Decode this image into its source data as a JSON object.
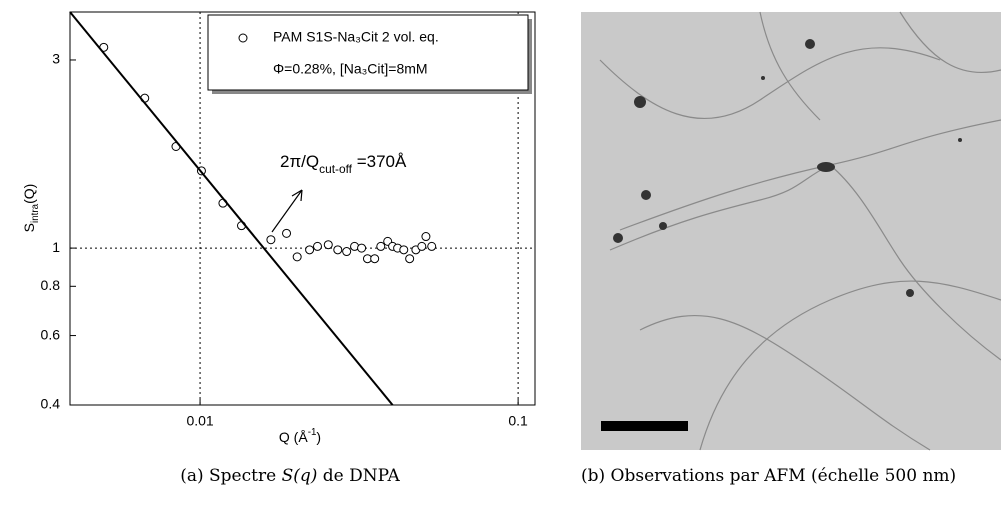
{
  "chart_data": {
    "type": "scatter",
    "xlabel": [
      {
        "text": "Q (Å"
      },
      {
        "text": "-1",
        "shift": "super"
      },
      {
        "text": ")"
      }
    ],
    "ylabel": [
      {
        "text": "S"
      },
      {
        "text": "intra",
        "shift": "sub"
      },
      {
        "text": "(Q)"
      }
    ],
    "log_x": true,
    "log_y": true,
    "xlim": [
      0.0039,
      0.113
    ],
    "ylim": [
      0.4,
      3.97
    ],
    "xticks": [
      0.01,
      0.1
    ],
    "yticks": [
      0.4,
      0.6,
      0.8,
      1,
      3
    ],
    "ref_lines": {
      "x": [
        0.01,
        0.1
      ],
      "y": [
        1
      ]
    },
    "series": [
      {
        "name": "PAM S1S-Na₃Cit 2 vol. eq.",
        "style": "markers",
        "color": "#000000",
        "x": [
          0.00498,
          0.0067,
          0.0084,
          0.0101,
          0.0118,
          0.0135,
          0.0167,
          0.0187,
          0.0202,
          0.0221,
          0.0234,
          0.0253,
          0.0271,
          0.0289,
          0.0306,
          0.0322,
          0.0336,
          0.0354,
          0.037,
          0.0389,
          0.0403,
          0.0418,
          0.0437,
          0.0456,
          0.0477,
          0.0498,
          0.0513,
          0.0535
        ],
        "y": [
          3.23,
          2.4,
          1.81,
          1.57,
          1.3,
          1.14,
          1.05,
          1.09,
          0.95,
          0.99,
          1.01,
          1.02,
          0.99,
          0.98,
          1.01,
          1.0,
          0.94,
          0.94,
          1.01,
          1.04,
          1.01,
          1.0,
          0.99,
          0.94,
          0.99,
          1.01,
          1.07,
          1.01
        ]
      },
      {
        "style": "line",
        "color": "#000000",
        "x": [
          0.0039,
          0.0403
        ],
        "y": [
          3.97,
          0.4
        ]
      }
    ],
    "legend_note": "Φ=0.28%, [Na₃Cit]=8mM",
    "annotation": [
      {
        "text": "2π/Q"
      },
      {
        "text": "cut-off",
        "shift": "sub"
      },
      {
        "text": " =370Å"
      }
    ]
  },
  "figure": {
    "caption_a": [
      {
        "text": "(a) Spectre "
      },
      {
        "text": "S(q)",
        "italic": true
      },
      {
        "text": " de DNPA"
      }
    ],
    "caption_b": "(b) Observations par AFM (échelle 500 nm)"
  }
}
